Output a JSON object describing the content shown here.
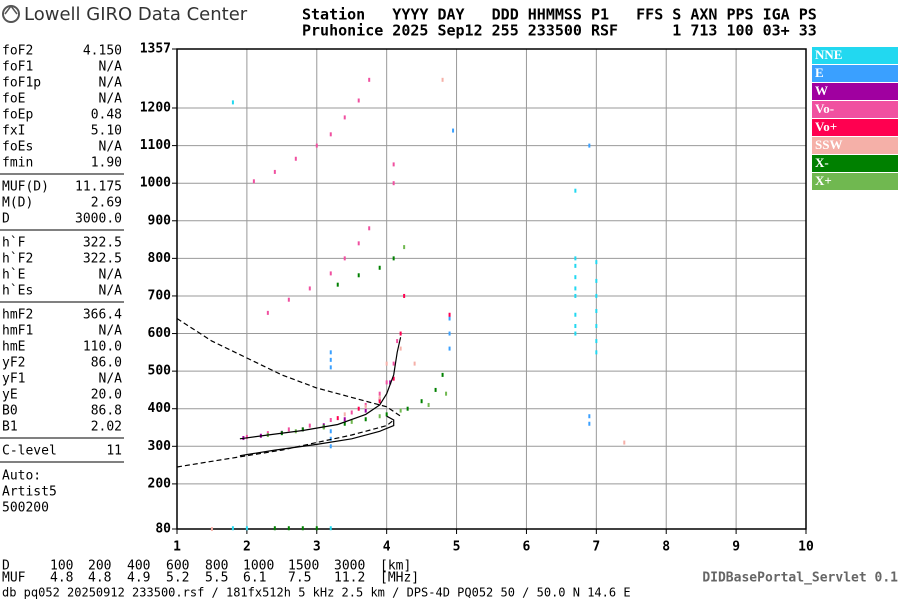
{
  "header": {
    "logo": "Lowell GIRO Data Center",
    "line1": "Station   YYYY DAY   DDD HHMMSS P1   FFS S AXN PPS IGA PS",
    "line2": "Pruhonice 2025 Sep12 255 233500 RSF      1 713 100 03+ 33"
  },
  "params": [
    [
      [
        "foF2",
        "4.150"
      ],
      [
        "foF1",
        "N/A"
      ],
      [
        "foF1p",
        "N/A"
      ],
      [
        "foE",
        "N/A"
      ],
      [
        "foEp",
        "0.48"
      ],
      [
        "fxI",
        "5.10"
      ],
      [
        "foEs",
        "N/A"
      ],
      [
        "fmin",
        "1.90"
      ]
    ],
    [
      [
        "MUF(D)",
        "11.175"
      ],
      [
        "M(D)",
        "2.69"
      ],
      [
        "D",
        "3000.0"
      ]
    ],
    [
      [
        "h`F",
        "322.5"
      ],
      [
        "h`F2",
        "322.5"
      ],
      [
        "h`E",
        "N/A"
      ],
      [
        "h`Es",
        "N/A"
      ]
    ],
    [
      [
        "hmF2",
        "366.4"
      ],
      [
        "hmF1",
        "N/A"
      ],
      [
        "hmE",
        "110.0"
      ],
      [
        "yF2",
        "86.0"
      ],
      [
        "yF1",
        "N/A"
      ],
      [
        "yE",
        "20.0"
      ],
      [
        "B0",
        "86.8"
      ],
      [
        "B1",
        "2.02"
      ]
    ],
    [
      [
        "C-level",
        "11"
      ]
    ]
  ],
  "auto": [
    "Auto:",
    "Artist5",
    "500200"
  ],
  "distance_table": {
    "rows": [
      {
        "label": "D",
        "values": [
          "100",
          "200",
          "400",
          "600",
          "800",
          "1000",
          "1500",
          "3000"
        ],
        "unit": "[km]"
      },
      {
        "label": "MUF",
        "values": [
          "4.8",
          "4.8",
          "4.9",
          "5.2",
          "5.5",
          "6.1",
          "7.5",
          "11.2"
        ],
        "unit": "[MHz]"
      }
    ]
  },
  "footer": {
    "info": "db pq052 20250912 233500.rsf / 181fx512h 5 kHz 2.5 km / DPS-4D PQ052 50 / 50.0 N 14.6 E",
    "app": "DIDBasePortal_Servlet 0.1"
  },
  "chart_data": {
    "type": "scatter",
    "xlim": [
      1,
      10
    ],
    "xticks": [
      1,
      2,
      3,
      4,
      5,
      6,
      7,
      8,
      9,
      10
    ],
    "ylim": [
      80,
      1357
    ],
    "yticks": [
      80,
      200,
      300,
      400,
      500,
      600,
      700,
      800,
      900,
      1000,
      1100,
      1200,
      1357
    ],
    "grid": true,
    "series": [
      {
        "name": "NNE",
        "color": "#22d8f0",
        "x": [
          6.7,
          6.7,
          6.7,
          6.7,
          6.7,
          6.7,
          6.7,
          6.7,
          7.0,
          7.0,
          7.0,
          7.0,
          7.0,
          7.0,
          7.0,
          1.8,
          2.0,
          3.2,
          1.8,
          6.7
        ],
        "values": [
          600,
          620,
          650,
          700,
          720,
          750,
          780,
          800,
          550,
          580,
          620,
          660,
          700,
          740,
          790,
          82,
          82,
          82,
          1215,
          980
        ]
      },
      {
        "name": "E",
        "color": "#3aa0ff",
        "x": [
          3.2,
          3.2,
          3.2,
          3.2,
          3.2,
          3.2,
          4.9,
          4.9,
          4.9,
          6.9,
          6.9,
          6.9,
          4.95
        ],
        "values": [
          300,
          320,
          340,
          510,
          530,
          550,
          560,
          600,
          640,
          360,
          380,
          1100,
          1140
        ]
      },
      {
        "name": "W",
        "color": "#a000a0",
        "x": [
          1.95,
          2.2,
          2.5,
          2.8,
          3.1,
          3.4,
          3.7,
          3.9,
          4.05
        ],
        "values": [
          322,
          328,
          336,
          345,
          356,
          372,
          395,
          425,
          470
        ]
      },
      {
        "name": "Vo-",
        "color": "#f050a0",
        "x": [
          2.0,
          2.3,
          2.6,
          2.9,
          3.2,
          3.5,
          3.7,
          3.9,
          4.0,
          4.1,
          4.15,
          2.3,
          2.6,
          2.9,
          3.2,
          3.4,
          3.6,
          3.75,
          2.1,
          2.4,
          2.7,
          3.0,
          3.2,
          3.4,
          3.6,
          3.75,
          4.1,
          4.1
        ],
        "values": [
          325,
          335,
          345,
          355,
          370,
          390,
          410,
          440,
          470,
          520,
          580,
          655,
          690,
          720,
          760,
          800,
          840,
          880,
          1005,
          1030,
          1065,
          1100,
          1130,
          1175,
          1220,
          1275,
          1050,
          1000
        ]
      },
      {
        "name": "Vo+",
        "color": "#ff0050",
        "x": [
          3.3,
          3.6,
          3.9,
          4.1,
          4.2,
          4.25,
          4.9
        ],
        "values": [
          375,
          400,
          420,
          480,
          600,
          700,
          650
        ]
      },
      {
        "name": "SSW",
        "color": "#f5b0a8",
        "x": [
          3.4,
          3.7,
          3.9,
          4.0,
          4.2,
          4.4,
          7.4,
          4.8,
          1.5
        ],
        "values": [
          385,
          405,
          430,
          520,
          560,
          520,
          310,
          1275,
          80
        ]
      },
      {
        "name": "X-",
        "color": "#008000",
        "x": [
          2.5,
          2.8,
          3.1,
          3.4,
          3.7,
          4.0,
          4.3,
          4.5,
          4.7,
          4.8,
          3.3,
          3.6,
          3.9,
          4.1,
          2.4,
          2.6,
          2.8,
          3.0
        ],
        "values": [
          335,
          345,
          352,
          360,
          372,
          385,
          400,
          420,
          450,
          490,
          730,
          755,
          775,
          800,
          82,
          82,
          82,
          82
        ]
      },
      {
        "name": "X+",
        "color": "#70b850",
        "x": [
          2.3,
          2.7,
          3.1,
          3.5,
          3.9,
          4.2,
          4.6,
          4.85,
          4.25
        ],
        "values": [
          330,
          340,
          350,
          365,
          380,
          395,
          410,
          440,
          830
        ]
      }
    ],
    "curves": [
      {
        "style": "solid",
        "x": [
          1.9,
          2.3,
          2.8,
          3.3,
          3.7,
          3.9,
          4.0,
          4.1,
          4.15,
          4.2
        ],
        "y": [
          320,
          330,
          342,
          358,
          385,
          410,
          440,
          490,
          550,
          590
        ]
      },
      {
        "style": "solid",
        "x": [
          1.9,
          2.4,
          3.0,
          3.5,
          3.9,
          4.1,
          4.1,
          4.0
        ],
        "y": [
          275,
          290,
          305,
          320,
          340,
          355,
          370,
          380
        ]
      },
      {
        "style": "dashed",
        "x": [
          1,
          1.5,
          2.0,
          2.5,
          3.0,
          3.5,
          4.0,
          4.2
        ],
        "y": [
          640,
          580,
          535,
          490,
          455,
          430,
          405,
          380
        ]
      },
      {
        "style": "dashed",
        "x": [
          1,
          1.5,
          2,
          2.5,
          3,
          3.5,
          4.0,
          4.1
        ],
        "y": [
          245,
          260,
          275,
          290,
          310,
          330,
          355,
          370
        ]
      }
    ]
  }
}
